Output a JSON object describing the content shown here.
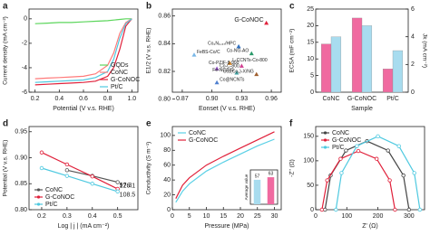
{
  "chart_data": [
    {
      "label": "a",
      "type": "line",
      "xlabel": "Potential (V v.s. RHE)",
      "ylabel": "Current density (mA cm⁻²)",
      "x": [
        0.2,
        0.3,
        0.4,
        0.5,
        0.6,
        0.7,
        0.8,
        0.85,
        0.9,
        0.95,
        1.0
      ],
      "series": [
        {
          "name": "GQDs",
          "color": "#5cd65c",
          "values": [
            -0.4,
            -0.35,
            -0.3,
            -0.3,
            -0.25,
            -0.2,
            -0.15,
            -0.1,
            -0.05,
            0,
            0
          ]
        },
        {
          "name": "CoNC",
          "color": "#ff7a7a",
          "values": [
            -4.9,
            -4.85,
            -4.8,
            -4.75,
            -4.7,
            -4.5,
            -3.8,
            -2.8,
            -1.2,
            -0.3,
            0
          ]
        },
        {
          "name": "G-CoNOC",
          "color": "#e0203a",
          "values": [
            -5.4,
            -5.35,
            -5.3,
            -5.25,
            -5.2,
            -5.1,
            -4.7,
            -4.0,
            -2.5,
            -0.6,
            0
          ]
        },
        {
          "name": "Pt/C",
          "color": "#4ec9e0",
          "values": [
            -5.2,
            -5.15,
            -5.1,
            -5.05,
            -5.0,
            -4.8,
            -4.3,
            -3.3,
            -1.6,
            -0.4,
            0
          ]
        }
      ],
      "xlim": [
        0.15,
        1.05
      ],
      "ylim": [
        -6,
        0.8
      ],
      "xticks": [
        0.2,
        0.4,
        0.6,
        0.8,
        {
          "value": 1.0,
          "label": "1.0"
        }
      ],
      "yticks": [
        -6,
        -4,
        -2,
        0
      ],
      "legend": "lower-right"
    },
    {
      "label": "b",
      "type": "scatter",
      "xlabel": "Eonset (V v.s. RHE)",
      "ylabel": "E1/2 (V v.s. RHE)",
      "x": [
        0.955,
        0.882,
        0.927,
        0.94,
        0.918,
        0.905,
        0.93,
        0.925,
        0.945,
        0.905
      ],
      "values": [
        0.855,
        0.832,
        0.838,
        0.833,
        0.826,
        0.822,
        0.824,
        0.819,
        0.818,
        0.812
      ],
      "labels": [
        "G-CoNOC",
        "FeBS-Co/C",
        "Co₂N₀.₆₇/HPC",
        "Co-NG-AO",
        "L-CCNTs-Co-800",
        "Co-C-800",
        "Co-PZIF-8-900",
        "Fe-NC/NG",
        "Co₂(Co₃)-X/NG",
        "Co@NCNTs"
      ],
      "colors": [
        "#e0203a",
        "#7ab8e8",
        "#3070c0",
        "#2a9a6a",
        "#e08a20",
        "#9050c0",
        "#d04090",
        "#40a0a0",
        "#a06030",
        "#5080d0"
      ],
      "xlim": [
        0.86,
        0.97
      ],
      "ylim": [
        0.805,
        0.865
      ],
      "xticks": [
        0.87,
        {
          "value": 0.9,
          "label": "0.90"
        },
        0.93,
        0.96
      ],
      "yticks": [
        {
          "value": 0.8,
          "label": "0.80"
        },
        0.82,
        0.84,
        0.86
      ]
    },
    {
      "label": "c",
      "type": "bar",
      "xlabel": "Sample",
      "ylabel": "ECSA (mF cm⁻²)",
      "y2label": "Jk (mA cm⁻²)",
      "categories": [
        "CoNC",
        "G-CoNOC",
        "Pt/C"
      ],
      "series": [
        {
          "color": "#f06aa0",
          "values": [
            14.5,
            22.3,
            7
          ]
        },
        {
          "color": "#a8dcef",
          "values": [
            4.0,
            4.8,
            3.0
          ],
          "axis": "y2"
        }
      ],
      "ylim": [
        0,
        25
      ],
      "yticks": [
        0,
        5,
        10,
        15,
        20,
        25
      ],
      "y2lim": [
        0,
        6
      ],
      "y2ticks": [
        0,
        2,
        4,
        6
      ]
    },
    {
      "label": "d",
      "type": "line",
      "xlabel": "Log | j | (mA cm⁻²)",
      "ylabel": "Potential (V v.s. RHE)",
      "x": [
        0.2,
        0.3,
        0.4,
        0.5
      ],
      "series": [
        {
          "name": "CoNC",
          "color": "#555555",
          "values": [
            null,
            0.876,
            0.865,
            0.853
          ],
          "slope": 126.1
        },
        {
          "name": "G-CoNOC",
          "color": "#e0203a",
          "values": [
            0.91,
            0.887,
            0.864,
            0.84
          ],
          "slope": 97.3
        },
        {
          "name": "Pt/C",
          "color": "#4ec9e0",
          "values": [
            0.88,
            0.865,
            0.85,
            0.835
          ],
          "slope": 108.5
        }
      ],
      "xlim": [
        0.15,
        0.58
      ],
      "ylim": [
        0.8,
        0.96
      ],
      "xticks": [
        0.2,
        0.3,
        0.4,
        0.5
      ],
      "yticks": [
        {
          "value": 0.8,
          "label": "0.80"
        },
        0.85,
        {
          "value": 0.9,
          "label": "0.90"
        },
        0.95
      ],
      "markers": true,
      "legend": "lower-left"
    },
    {
      "label": "e",
      "type": "line",
      "xlabel": "Pressure (MPa)",
      "ylabel": "Conductivity (S m⁻¹)",
      "x": [
        1,
        3,
        5,
        10,
        15,
        20,
        25,
        30
      ],
      "series": [
        {
          "name": "CoNC",
          "color": "#5ad0e6",
          "values": [
            10,
            25,
            35,
            52,
            64,
            75,
            86,
            95
          ]
        },
        {
          "name": "G-CoNOC",
          "color": "#e0203a",
          "values": [
            15,
            33,
            43,
            60,
            72,
            83,
            94,
            105
          ]
        }
      ],
      "xlim": [
        0,
        32
      ],
      "ylim": [
        0,
        112
      ],
      "xticks": [
        0,
        5,
        10,
        15,
        20,
        25,
        30
      ],
      "yticks": [
        0,
        20,
        40,
        60,
        80,
        100
      ],
      "legend": "upper-left"
    },
    {
      "label": "f",
      "type": "line",
      "xlabel": "Z' (Ω)",
      "ylabel": "-Z'' (Ω)",
      "series": [
        {
          "name": "CoNC",
          "color": "#444444",
          "x": [
            30,
            48,
            97.5,
            165,
            232.5,
            282,
            300
          ],
          "values": [
            0,
            70,
            121,
            140,
            121,
            70,
            0
          ]
        },
        {
          "name": "G-CoNOC",
          "color": "#e0203a",
          "x": [
            20,
            37,
            80,
            137,
            196,
            238,
            255
          ],
          "values": [
            0,
            60,
            104,
            120,
            104,
            60,
            0
          ]
        },
        {
          "name": "Pt/C",
          "color": "#4ec9e0",
          "x": [
            65,
            83,
            132.5,
            200,
            267.5,
            317,
            335
          ],
          "values": [
            0,
            75,
            130,
            150,
            130,
            75,
            0
          ]
        }
      ],
      "xlim": [
        0,
        350
      ],
      "ylim": [
        0,
        170
      ],
      "xticks": [
        0,
        100,
        200,
        300
      ],
      "yticks": [
        0,
        50,
        100,
        150
      ],
      "markers": true,
      "legend": "upper-left"
    },
    {
      "type": "bar",
      "ylabel": "Average value",
      "values": [
        57,
        63
      ],
      "colors": [
        "#a8dcef",
        "#f06aa0"
      ],
      "ylim": [
        0,
        80
      ]
    }
  ]
}
